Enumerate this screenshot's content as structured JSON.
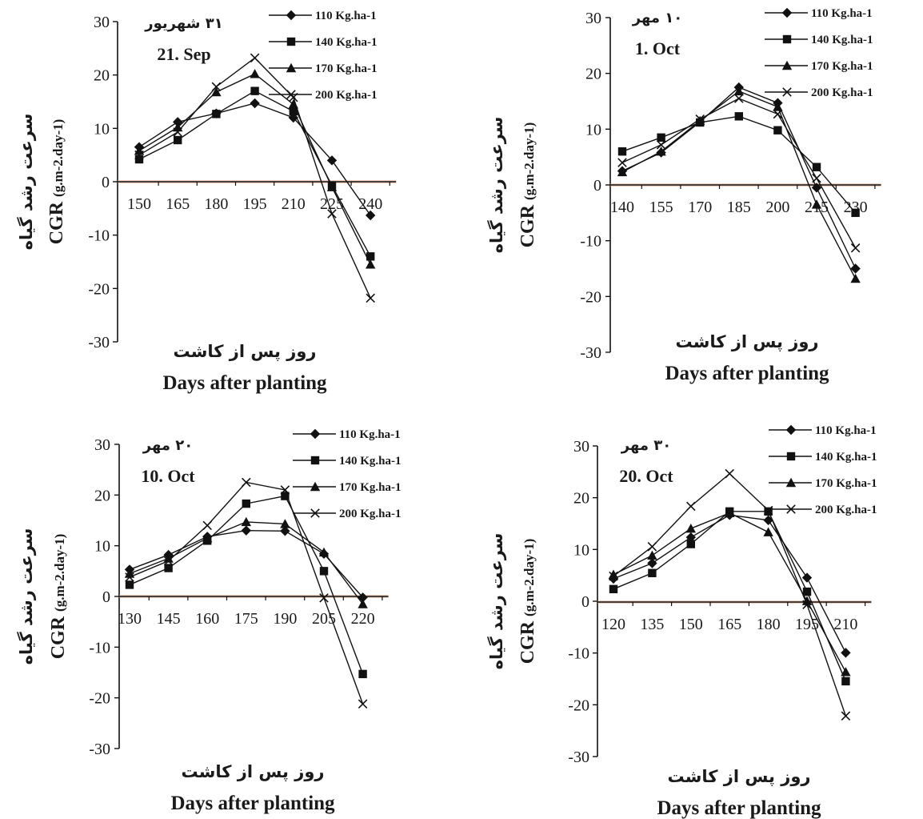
{
  "chart_data": [
    {
      "type": "line",
      "date_fa": "۳۱ شهریور",
      "date_en": "21. Sep",
      "x": [
        150,
        165,
        180,
        195,
        210,
        225,
        240
      ],
      "xticks": [
        "150",
        "165",
        "180",
        "195",
        "210",
        "225",
        "240"
      ],
      "ylim": [
        -30,
        30
      ],
      "yticks": [
        "30",
        "20",
        "10",
        "0",
        "-10",
        "-20",
        "-30"
      ],
      "xlabel_fa": "روز پس از کاشت",
      "xlabel_en": "Days after planting",
      "ylabel_fa": "سرعت رشد گیاه",
      "ylabel_en": "CGR",
      "ylabel_unit": "(g.m-2.day-1)",
      "series": [
        {
          "name": "110 Kg.ha-1",
          "marker": "diamond",
          "values": [
            6.5,
            11.2,
            12.8,
            14.7,
            12.0,
            4.0,
            -6.3
          ]
        },
        {
          "name": "140 Kg.ha-1",
          "marker": "square",
          "values": [
            4.2,
            7.8,
            12.7,
            17.0,
            13.2,
            -0.7,
            -14.0
          ]
        },
        {
          "name": "170 Kg.ha-1",
          "marker": "triangle",
          "values": [
            5.8,
            10.2,
            16.8,
            20.2,
            14.5,
            -1.0,
            -15.5
          ]
        },
        {
          "name": "200 Kg.ha-1",
          "marker": "cross",
          "values": [
            5.0,
            9.3,
            17.8,
            23.2,
            15.8,
            -6.0,
            -21.8
          ]
        }
      ]
    },
    {
      "type": "line",
      "date_fa": "۱۰ مهر",
      "date_en": "1. Oct",
      "x": [
        140,
        155,
        170,
        185,
        200,
        215,
        230
      ],
      "xticks": [
        "140",
        "155",
        "170",
        "185",
        "200",
        "215",
        "230"
      ],
      "ylim": [
        -30,
        30
      ],
      "yticks": [
        "30",
        "20",
        "10",
        "0",
        "-10",
        "-20",
        "-30"
      ],
      "xlabel_fa": "روز پس از کاشت",
      "xlabel_en": "Days after planting",
      "ylabel_fa": "سرعت رشد گیاه",
      "ylabel_en": "CGR",
      "ylabel_unit": "(g.m-2.day-1)",
      "series": [
        {
          "name": "110 Kg.ha-1",
          "marker": "diamond",
          "values": [
            2.5,
            5.8,
            11.3,
            17.5,
            14.7,
            -0.5,
            -15.0
          ]
        },
        {
          "name": "140 Kg.ha-1",
          "marker": "square",
          "values": [
            6.0,
            8.5,
            11.2,
            12.3,
            9.8,
            3.2,
            -5.0
          ]
        },
        {
          "name": "170 Kg.ha-1",
          "marker": "triangle",
          "values": [
            2.3,
            6.0,
            11.5,
            16.8,
            14.0,
            -3.5,
            -16.8
          ]
        },
        {
          "name": "200 Kg.ha-1",
          "marker": "cross",
          "values": [
            4.0,
            7.2,
            11.8,
            15.5,
            12.7,
            1.2,
            -11.3
          ]
        }
      ]
    },
    {
      "type": "line",
      "date_fa": "۲۰ مهر",
      "date_en": "10. Oct",
      "x": [
        130,
        145,
        160,
        175,
        190,
        205,
        220
      ],
      "xticks": [
        "130",
        "145",
        "160",
        "175",
        "190",
        "205",
        "220"
      ],
      "ylim": [
        -30,
        30
      ],
      "yticks": [
        "30",
        "20",
        "10",
        "0",
        "-10",
        "-20",
        "-30"
      ],
      "xlabel_fa": "روز پس از کاشت",
      "xlabel_en": "Days after planting",
      "ylabel_fa": "سرعت رشد گیاه",
      "ylabel_en": "CGR",
      "ylabel_unit": "(g.m-2.day-1)",
      "series": [
        {
          "name": "110 Kg.ha-1",
          "marker": "diamond",
          "values": [
            5.3,
            8.2,
            11.8,
            13.0,
            12.9,
            8.4,
            -0.2
          ]
        },
        {
          "name": "140 Kg.ha-1",
          "marker": "square",
          "values": [
            2.3,
            5.6,
            11.0,
            18.3,
            19.8,
            5.0,
            -15.3
          ]
        },
        {
          "name": "170 Kg.ha-1",
          "marker": "triangle",
          "values": [
            4.5,
            7.5,
            11.5,
            14.7,
            14.3,
            8.7,
            -1.5
          ]
        },
        {
          "name": "200 Kg.ha-1",
          "marker": "cross",
          "values": [
            3.8,
            7.0,
            14.0,
            22.5,
            21.0,
            -0.3,
            -21.2
          ]
        }
      ]
    },
    {
      "type": "line",
      "date_fa": "۳۰ مهر",
      "date_en": "20. Oct",
      "x": [
        120,
        135,
        150,
        165,
        180,
        195,
        210
      ],
      "xticks": [
        "120",
        "135",
        "150",
        "165",
        "180",
        "195",
        "210"
      ],
      "ylim": [
        -30,
        30
      ],
      "yticks": [
        "30",
        "20",
        "10",
        "0",
        "-10",
        "-20",
        "-30"
      ],
      "xlabel_fa": "روز پس از کاشت",
      "xlabel_en": "Days after planting",
      "ylabel_fa": "سرعت رشد گیاه",
      "ylabel_en": "CGR",
      "ylabel_unit": "(g.m-2.day-1)",
      "series": [
        {
          "name": "110 Kg.ha-1",
          "marker": "diamond",
          "values": [
            4.5,
            7.5,
            12.5,
            16.8,
            15.8,
            4.7,
            -9.8
          ]
        },
        {
          "name": "140 Kg.ha-1",
          "marker": "square",
          "values": [
            2.5,
            5.6,
            11.2,
            17.5,
            17.5,
            2.0,
            -15.3
          ]
        },
        {
          "name": "170 Kg.ha-1",
          "marker": "triangle",
          "values": [
            5.3,
            9.0,
            14.2,
            17.2,
            13.5,
            0.2,
            -13.5
          ]
        },
        {
          "name": "200 Kg.ha-1",
          "marker": "cross",
          "values": [
            5.0,
            10.7,
            18.5,
            24.8,
            17.7,
            -0.5,
            -22.0
          ]
        }
      ]
    }
  ]
}
